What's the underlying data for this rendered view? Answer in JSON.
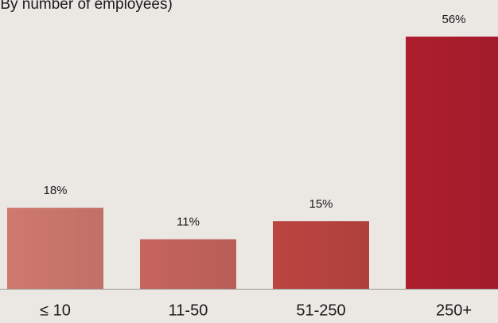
{
  "chart_data": {
    "type": "bar",
    "subtitle": "(By number of employees)",
    "categories": [
      "≤ 10",
      "11-50",
      "51-250",
      "250+"
    ],
    "values": [
      18,
      11,
      15,
      56
    ],
    "value_labels": [
      "18%",
      "11%",
      "15%",
      "56%"
    ],
    "colors": [
      "#c9756b",
      "#c0625a",
      "#b6433f",
      "#a91d2d"
    ]
  }
}
